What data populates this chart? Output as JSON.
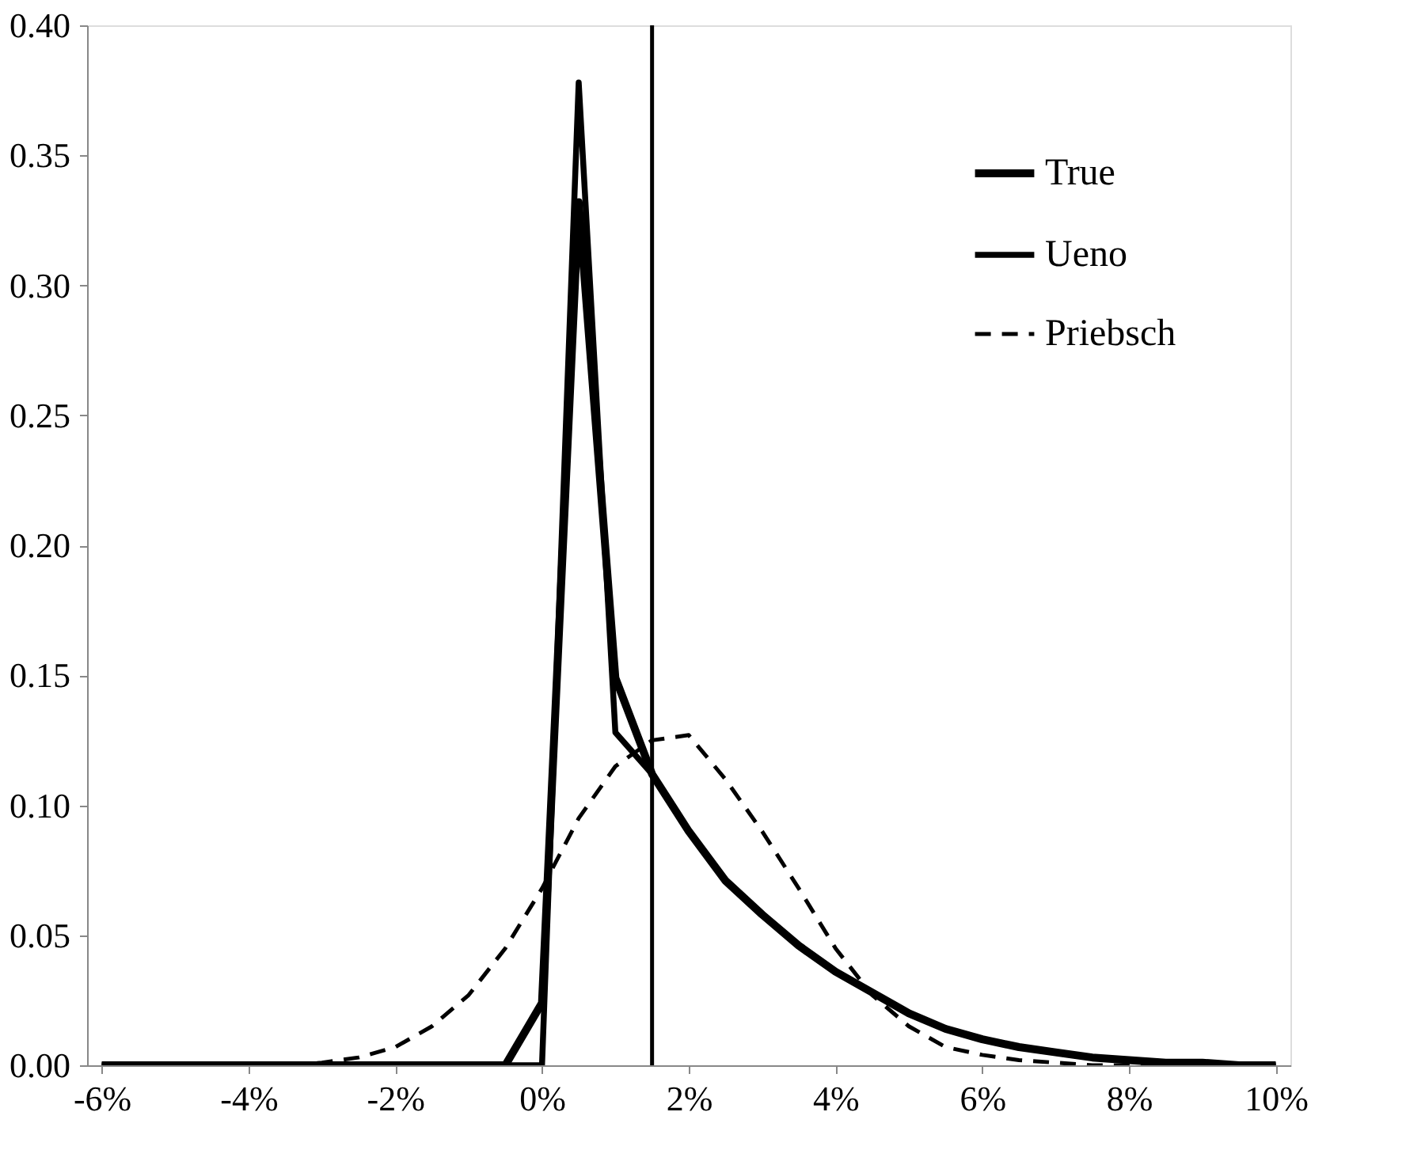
{
  "chart_data": {
    "type": "line",
    "x": [
      -6,
      -5.5,
      -5,
      -4.5,
      -4,
      -3.5,
      -3,
      -2.5,
      -2,
      -1.5,
      -1,
      -0.5,
      0,
      0.5,
      1,
      1.5,
      2,
      2.5,
      3,
      3.5,
      4,
      4.5,
      5,
      5.5,
      6,
      6.5,
      7,
      7.5,
      8,
      8.5,
      9,
      9.5,
      10
    ],
    "series": [
      {
        "name": "True",
        "color": "#000000",
        "line_style": "solid",
        "values": [
          0,
          0,
          0,
          0,
          0,
          0,
          0,
          0,
          0,
          0,
          0,
          0,
          0.024,
          0.332,
          0.149,
          0.112,
          0.09,
          0.071,
          0.058,
          0.046,
          0.036,
          0.028,
          0.02,
          0.014,
          0.01,
          0.007,
          0.005,
          0.003,
          0.002,
          0.001,
          0.001,
          0,
          0
        ]
      },
      {
        "name": "Ueno",
        "color": "#000000",
        "line_style": "solid",
        "values": [
          0,
          0,
          0,
          0,
          0,
          0,
          0,
          0,
          0,
          0,
          0,
          0,
          0,
          0.378,
          0.128,
          0.112,
          0.09,
          0.071,
          0.058,
          0.046,
          0.036,
          0.028,
          0.02,
          0.014,
          0.01,
          0.007,
          0.005,
          0.003,
          0.002,
          0.001,
          0.001,
          0,
          0
        ]
      },
      {
        "name": "Priebsch",
        "color": "#000000",
        "line_style": "dashed",
        "values": [
          0,
          0,
          0,
          0,
          0,
          0,
          0.001,
          0.003,
          0.007,
          0.015,
          0.027,
          0.045,
          0.068,
          0.095,
          0.115,
          0.125,
          0.127,
          0.11,
          0.09,
          0.068,
          0.045,
          0.027,
          0.015,
          0.007,
          0.004,
          0.002,
          0.001,
          0,
          0,
          0,
          0,
          0,
          0
        ]
      }
    ],
    "xlim": [
      -6.2,
      10.2
    ],
    "xticks": [
      {
        "value": -6,
        "label": "-6%"
      },
      {
        "value": -4,
        "label": "-4%"
      },
      {
        "value": -2,
        "label": "-2%"
      },
      {
        "value": 0,
        "label": "0%"
      },
      {
        "value": 2,
        "label": "2%"
      },
      {
        "value": 4,
        "label": "4%"
      },
      {
        "value": 6,
        "label": "6%"
      },
      {
        "value": 8,
        "label": "8%"
      },
      {
        "value": 10,
        "label": "10%"
      }
    ],
    "ylim": [
      0,
      0.4
    ],
    "yticks": [
      {
        "value": 0,
        "label": "0.00"
      },
      {
        "value": 0.05,
        "label": "0.05"
      },
      {
        "value": 0.1,
        "label": "0.10"
      },
      {
        "value": 0.15,
        "label": "0.15"
      },
      {
        "value": 0.2,
        "label": "0.20"
      },
      {
        "value": 0.25,
        "label": "0.25"
      },
      {
        "value": 0.3,
        "label": "0.30"
      },
      {
        "value": 0.35,
        "label": "0.35"
      },
      {
        "value": 0.4,
        "label": "0.40"
      }
    ],
    "ref_lines": [
      {
        "axis": "x",
        "value": 1.5,
        "color": "#000000"
      }
    ],
    "legend": "top right",
    "grid": false
  }
}
